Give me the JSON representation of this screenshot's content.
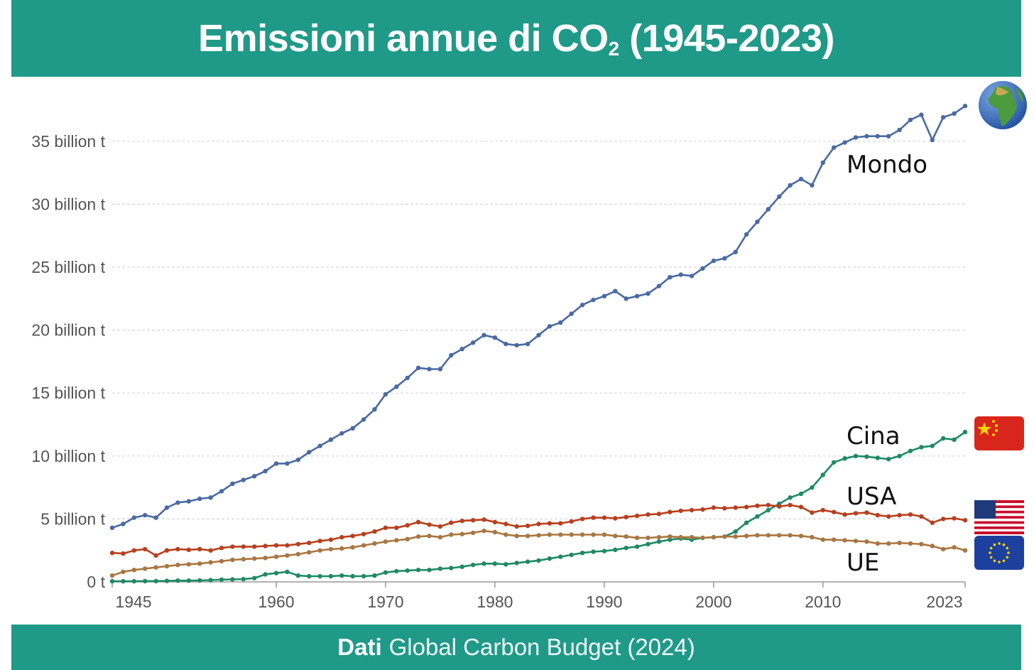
{
  "header": {
    "title_main": "Emissioni annue di CO",
    "title_sub": "2",
    "title_tail": " (1945-2023)"
  },
  "footer": {
    "label": "Dati",
    "source": "Global Carbon Budget (2024)"
  },
  "colors": {
    "banner": "#1f9a88",
    "world": "#4a6aa3",
    "china": "#1f8a65",
    "usa": "#b8401f",
    "eu": "#a97742",
    "grid": "#d6d6d6",
    "axis_text": "#555555"
  },
  "icons": {
    "world": "globe-africa-icon",
    "china": "flag-china-icon",
    "usa": "flag-usa-icon",
    "eu": "flag-eu-icon"
  },
  "chart_data": {
    "type": "line",
    "title": "Emissioni annue di CO2 (1945-2023)",
    "xlabel": "",
    "ylabel": "",
    "xlim": [
      1945,
      2023
    ],
    "ylim": [
      0,
      38
    ],
    "x_ticks": [
      1945,
      1960,
      1970,
      1980,
      1990,
      2000,
      2010,
      2023
    ],
    "y_ticks": [
      {
        "value": 0,
        "label": "0 t"
      },
      {
        "value": 5,
        "label": "5 billion t"
      },
      {
        "value": 10,
        "label": "10 billion t"
      },
      {
        "value": 15,
        "label": "15 billion t"
      },
      {
        "value": 20,
        "label": "20 billion t"
      },
      {
        "value": 25,
        "label": "25 billion t"
      },
      {
        "value": 30,
        "label": "30 billion t"
      },
      {
        "value": 35,
        "label": "35 billion t"
      }
    ],
    "x_start": 1945,
    "series": [
      {
        "key": "world",
        "name": "Mondo",
        "values": [
          4.3,
          4.6,
          5.1,
          5.3,
          5.1,
          5.9,
          6.3,
          6.4,
          6.6,
          6.7,
          7.2,
          7.8,
          8.1,
          8.4,
          8.8,
          9.4,
          9.4,
          9.7,
          10.3,
          10.8,
          11.3,
          11.8,
          12.2,
          12.9,
          13.7,
          14.9,
          15.5,
          16.2,
          17.0,
          16.9,
          16.9,
          18.0,
          18.5,
          19.0,
          19.6,
          19.4,
          18.9,
          18.8,
          18.9,
          19.6,
          20.3,
          20.6,
          21.3,
          22.0,
          22.4,
          22.7,
          23.1,
          22.5,
          22.7,
          22.9,
          23.5,
          24.2,
          24.4,
          24.3,
          24.9,
          25.5,
          25.7,
          26.2,
          27.6,
          28.6,
          29.6,
          30.6,
          31.5,
          32.0,
          31.5,
          33.3,
          34.5,
          34.9,
          35.3,
          35.4,
          35.4,
          35.4,
          35.9,
          36.7,
          37.1,
          35.1,
          36.9,
          37.2,
          37.8
        ]
      },
      {
        "key": "china",
        "name": "Cina",
        "values": [
          0.05,
          0.05,
          0.05,
          0.06,
          0.06,
          0.08,
          0.1,
          0.1,
          0.12,
          0.14,
          0.18,
          0.2,
          0.22,
          0.3,
          0.6,
          0.7,
          0.8,
          0.5,
          0.45,
          0.45,
          0.45,
          0.5,
          0.45,
          0.45,
          0.5,
          0.75,
          0.85,
          0.9,
          0.95,
          0.95,
          1.05,
          1.1,
          1.2,
          1.35,
          1.45,
          1.45,
          1.4,
          1.5,
          1.6,
          1.7,
          1.85,
          2.0,
          2.15,
          2.3,
          2.4,
          2.45,
          2.55,
          2.7,
          2.8,
          3.0,
          3.2,
          3.35,
          3.45,
          3.35,
          3.5,
          3.55,
          3.6,
          4.0,
          4.7,
          5.2,
          5.7,
          6.2,
          6.7,
          7.0,
          7.5,
          8.5,
          9.5,
          9.8,
          10.0,
          9.95,
          9.85,
          9.75,
          10.0,
          10.4,
          10.7,
          10.8,
          11.4,
          11.3,
          11.9
        ]
      },
      {
        "key": "usa",
        "name": "USA",
        "values": [
          2.3,
          2.25,
          2.5,
          2.6,
          2.1,
          2.5,
          2.6,
          2.55,
          2.6,
          2.5,
          2.7,
          2.8,
          2.8,
          2.8,
          2.85,
          2.9,
          2.9,
          3.0,
          3.1,
          3.25,
          3.35,
          3.55,
          3.65,
          3.8,
          4.0,
          4.3,
          4.3,
          4.5,
          4.75,
          4.55,
          4.4,
          4.7,
          4.85,
          4.9,
          4.95,
          4.75,
          4.6,
          4.4,
          4.45,
          4.6,
          4.65,
          4.65,
          4.8,
          5.0,
          5.1,
          5.1,
          5.05,
          5.15,
          5.25,
          5.35,
          5.4,
          5.55,
          5.65,
          5.7,
          5.75,
          5.9,
          5.85,
          5.9,
          5.95,
          6.05,
          6.1,
          6.0,
          6.1,
          5.95,
          5.5,
          5.7,
          5.55,
          5.35,
          5.45,
          5.5,
          5.3,
          5.2,
          5.3,
          5.35,
          5.2,
          4.7,
          5.0,
          5.05,
          4.9
        ]
      },
      {
        "key": "eu",
        "name": "UE",
        "values": [
          0.5,
          0.8,
          0.95,
          1.05,
          1.15,
          1.25,
          1.35,
          1.4,
          1.45,
          1.55,
          1.65,
          1.75,
          1.8,
          1.85,
          1.9,
          2.0,
          2.1,
          2.2,
          2.35,
          2.5,
          2.6,
          2.65,
          2.75,
          2.9,
          3.05,
          3.2,
          3.3,
          3.4,
          3.6,
          3.65,
          3.55,
          3.75,
          3.8,
          3.9,
          4.05,
          3.95,
          3.75,
          3.65,
          3.65,
          3.7,
          3.75,
          3.75,
          3.75,
          3.75,
          3.75,
          3.75,
          3.65,
          3.6,
          3.5,
          3.5,
          3.55,
          3.6,
          3.55,
          3.55,
          3.5,
          3.55,
          3.6,
          3.6,
          3.65,
          3.7,
          3.7,
          3.7,
          3.7,
          3.65,
          3.55,
          3.35,
          3.35,
          3.3,
          3.25,
          3.2,
          3.05,
          3.05,
          3.1,
          3.05,
          3.0,
          2.85,
          2.6,
          2.75,
          2.5
        ]
      }
    ]
  }
}
